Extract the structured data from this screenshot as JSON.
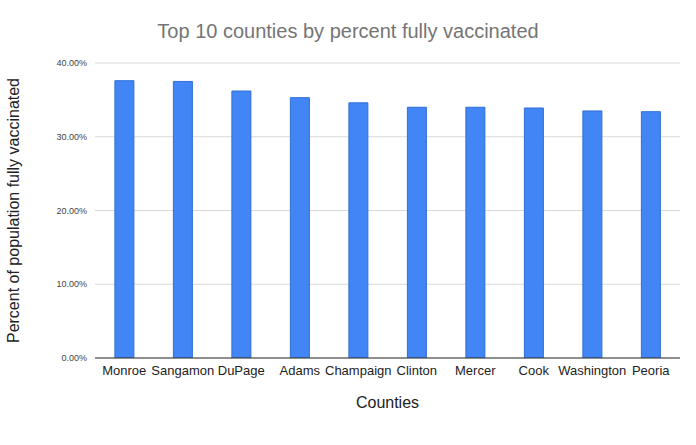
{
  "chart_data": {
    "type": "bar",
    "title": "Top 10 counties by percent fully vaccinated",
    "x_label": "Counties",
    "y_label": "Percent of population fully vaccinated",
    "categories": [
      "Monroe",
      "Sangamon",
      "DuPage",
      "Adams",
      "Champaign",
      "Clinton",
      "Mercer",
      "Cook",
      "Washington",
      "Peoria"
    ],
    "values": [
      37.6,
      37.5,
      36.2,
      35.3,
      34.6,
      34.0,
      34.0,
      33.9,
      33.5,
      33.4
    ],
    "color": "#4285f4",
    "ylim": [
      0,
      40
    ],
    "yticks": [
      {
        "value": 0,
        "label": "0.00%"
      },
      {
        "value": 10,
        "label": "10.00%"
      },
      {
        "value": 20,
        "label": "20.00%"
      },
      {
        "value": 30,
        "label": "30.00%"
      },
      {
        "value": 40,
        "label": "40.00%"
      }
    ],
    "grid": true
  }
}
